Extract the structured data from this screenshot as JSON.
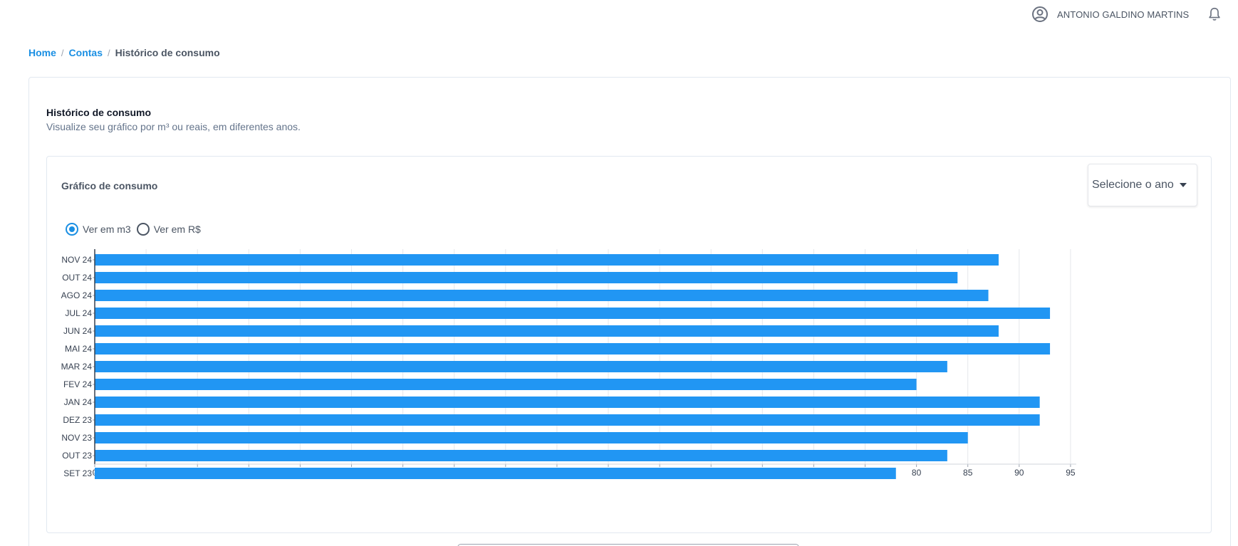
{
  "header": {
    "user_name": "ANTONIO GALDINO MARTINS"
  },
  "breadcrumb": {
    "home": "Home",
    "accounts": "Contas",
    "current": "Histórico de consumo",
    "separator": "/"
  },
  "page": {
    "title": "Histórico de consumo",
    "subtitle": "Visualize seu gráfico por m³ ou reais, em diferentes anos."
  },
  "chart_card": {
    "title": "Gráfico de consumo",
    "year_select_placeholder": "Selecione o ano",
    "radio_m3": "Ver em m3",
    "radio_brl": "Ver em R$",
    "selected": "m3"
  },
  "colors": {
    "accent": "#1a8fe3",
    "bar": "#2196f3"
  },
  "chart_data": {
    "type": "bar",
    "orientation": "horizontal",
    "categories": [
      "NOV 24",
      "OUT 24",
      "AGO 24",
      "JUL 24",
      "JUN 24",
      "MAI 24",
      "MAR 24",
      "FEV 24",
      "JAN 24",
      "DEZ 23",
      "NOV 23",
      "OUT 23",
      "SET 23"
    ],
    "values": [
      88,
      84,
      87,
      93,
      88,
      93,
      83,
      80,
      92,
      92,
      85,
      83,
      78
    ],
    "xlim": [
      0,
      95
    ],
    "xticks": [
      0,
      5,
      10,
      15,
      20,
      25,
      30,
      35,
      40,
      45,
      50,
      55,
      60,
      65,
      70,
      75,
      80,
      85,
      90,
      95
    ],
    "grid": true
  }
}
